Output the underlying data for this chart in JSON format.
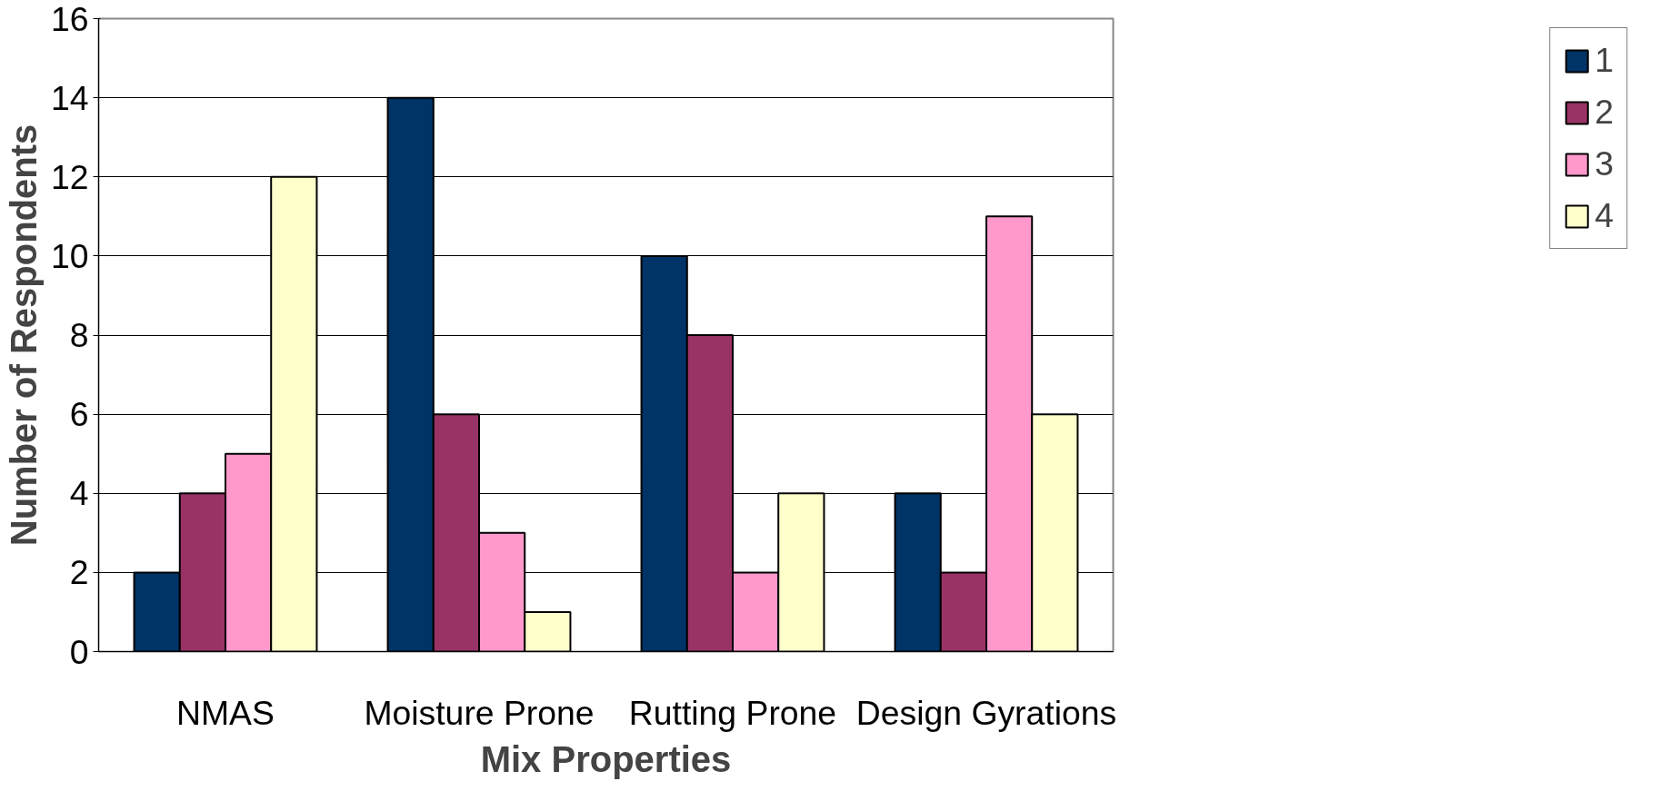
{
  "chart_data": {
    "type": "bar",
    "xlabel": "Mix Properties",
    "ylabel": "Number of Respondents",
    "categories": [
      "NMAS",
      "Moisture Prone",
      "Rutting Prone",
      "Design Gyrations"
    ],
    "series": [
      {
        "name": "1",
        "color": "#003366",
        "values": [
          2,
          14,
          10,
          4
        ]
      },
      {
        "name": "2",
        "color": "#993366",
        "values": [
          4,
          6,
          8,
          2
        ]
      },
      {
        "name": "3",
        "color": "#ff99cc",
        "values": [
          5,
          3,
          2,
          11
        ]
      },
      {
        "name": "4",
        "color": "#ffffcc",
        "values": [
          12,
          1,
          4,
          6
        ]
      }
    ],
    "ylim": [
      0,
      16
    ],
    "yticks": [
      0,
      2,
      4,
      6,
      8,
      10,
      12,
      14,
      16
    ],
    "grid": "y",
    "legend": "right"
  }
}
